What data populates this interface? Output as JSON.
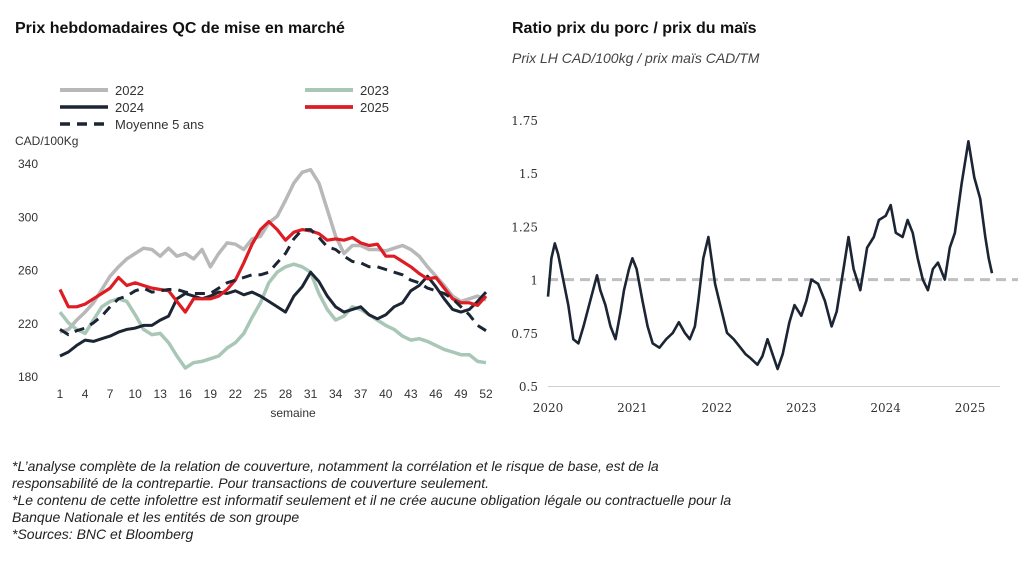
{
  "colors": {
    "y2022": "#b8b8b8",
    "y2023": "#a8c7b6",
    "y2024": "#1c2533",
    "y2025": "#dd1c24",
    "avg5": "#1c2533",
    "ratio": "#1c2533",
    "refline": "#bfbfbf"
  },
  "chart_data": [
    {
      "type": "line",
      "title": "Prix hebdomadaires QC de mise en marché",
      "ylabel": "CAD/100Kg",
      "xlabel": "semaine",
      "ylim": [
        180,
        340
      ],
      "yticks": [
        340,
        300,
        260,
        220,
        180
      ],
      "xticks": [
        1,
        4,
        7,
        10,
        13,
        16,
        19,
        22,
        25,
        28,
        31,
        34,
        37,
        40,
        43,
        46,
        49,
        52
      ],
      "xticks_labels": [
        "1",
        "4",
        "7",
        "10",
        "13",
        "16",
        "19",
        "22",
        "25",
        "28",
        "31",
        "34",
        "37",
        "40",
        "43",
        "46",
        "49",
        "52"
      ],
      "yticks_labels": [
        "340",
        "300",
        "260",
        "220",
        "180"
      ],
      "legend": [
        "2022",
        "2023",
        "2024",
        "2025",
        "Moyenne 5 ans"
      ],
      "series": [
        {
          "name": "2022",
          "x": [
            1,
            2,
            3,
            4,
            5,
            6,
            7,
            8,
            9,
            10,
            11,
            12,
            13,
            14,
            15,
            16,
            17,
            18,
            19,
            20,
            21,
            22,
            23,
            24,
            25,
            26,
            27,
            28,
            29,
            30,
            31,
            32,
            33,
            34,
            35,
            36,
            37,
            38,
            39,
            40,
            41,
            42,
            43,
            44,
            45,
            46,
            47,
            48,
            49,
            50,
            51,
            52
          ],
          "values": [
            213,
            215,
            222,
            228,
            235,
            245,
            255,
            262,
            268,
            272,
            276,
            275,
            270,
            276,
            270,
            272,
            268,
            275,
            262,
            272,
            280,
            279,
            275,
            283,
            285,
            295,
            300,
            312,
            325,
            333,
            335,
            325,
            305,
            285,
            272,
            278,
            278,
            275,
            275,
            274,
            276,
            278,
            275,
            270,
            262,
            255,
            248,
            240,
            236,
            238,
            240,
            237
          ]
        },
        {
          "name": "2023",
          "x": [
            1,
            2,
            3,
            4,
            5,
            6,
            7,
            8,
            9,
            10,
            11,
            12,
            13,
            14,
            15,
            16,
            17,
            18,
            19,
            20,
            21,
            22,
            23,
            24,
            25,
            26,
            27,
            28,
            29,
            30,
            31,
            32,
            33,
            34,
            35,
            36,
            37,
            38,
            39,
            40,
            41,
            42,
            43,
            44,
            45,
            46,
            47,
            48,
            49,
            50,
            51,
            52
          ],
          "values": [
            228,
            220,
            215,
            212,
            222,
            232,
            236,
            238,
            236,
            226,
            215,
            211,
            212,
            205,
            195,
            186,
            190,
            191,
            193,
            195,
            201,
            205,
            212,
            224,
            235,
            250,
            258,
            262,
            264,
            262,
            258,
            242,
            230,
            222,
            225,
            232,
            230,
            226,
            222,
            218,
            215,
            210,
            207,
            208,
            206,
            203,
            200,
            198,
            196,
            196,
            191,
            190
          ]
        },
        {
          "name": "2024",
          "x": [
            1,
            2,
            3,
            4,
            5,
            6,
            7,
            8,
            9,
            10,
            11,
            12,
            13,
            14,
            15,
            16,
            17,
            18,
            19,
            20,
            21,
            22,
            23,
            24,
            25,
            26,
            27,
            28,
            29,
            30,
            31,
            32,
            33,
            34,
            35,
            36,
            37,
            38,
            39,
            40,
            41,
            42,
            43,
            44,
            45,
            46,
            47,
            48,
            49,
            50,
            51,
            52
          ],
          "values": [
            195,
            198,
            203,
            207,
            206,
            208,
            210,
            213,
            215,
            216,
            218,
            218,
            222,
            225,
            238,
            242,
            240,
            238,
            240,
            243,
            242,
            244,
            241,
            243,
            240,
            236,
            232,
            228,
            240,
            247,
            258,
            251,
            240,
            232,
            228,
            230,
            232,
            226,
            223,
            226,
            232,
            235,
            244,
            248,
            255,
            247,
            238,
            230,
            228,
            230,
            236,
            243
          ]
        },
        {
          "name": "2025",
          "x": [
            1,
            2,
            3,
            4,
            5,
            6,
            7,
            8,
            9,
            10,
            11,
            12,
            13,
            14,
            15,
            16,
            17,
            18,
            19,
            20,
            21,
            22,
            23,
            24,
            25,
            26,
            27,
            28,
            29,
            30,
            31,
            32,
            33,
            34,
            35,
            36,
            37,
            38,
            39,
            40,
            41,
            42,
            43,
            44,
            45,
            46,
            47,
            48,
            49,
            50,
            51,
            52
          ],
          "values": [
            245,
            232,
            232,
            234,
            238,
            242,
            246,
            254,
            248,
            250,
            248,
            246,
            245,
            244,
            236,
            228,
            238,
            238,
            238,
            240,
            245,
            252,
            265,
            279,
            290,
            296,
            290,
            282,
            288,
            290,
            289,
            287,
            282,
            283,
            282,
            284,
            280,
            278,
            279,
            270,
            270,
            266,
            262,
            257,
            253,
            254,
            246,
            238,
            235,
            235,
            233,
            240
          ]
        },
        {
          "name": "Moyenne 5 ans",
          "x": [
            1,
            2,
            3,
            4,
            5,
            6,
            7,
            8,
            9,
            10,
            11,
            12,
            13,
            14,
            15,
            16,
            17,
            18,
            19,
            20,
            21,
            22,
            23,
            24,
            25,
            26,
            27,
            28,
            29,
            30,
            31,
            32,
            33,
            34,
            35,
            36,
            37,
            38,
            39,
            40,
            41,
            42,
            43,
            44,
            45,
            46,
            47,
            48,
            49,
            50,
            51,
            52
          ],
          "values": [
            215,
            211,
            214,
            216,
            220,
            225,
            232,
            238,
            240,
            244,
            246,
            243,
            244,
            245,
            245,
            243,
            242,
            242,
            242,
            246,
            250,
            252,
            254,
            256,
            256,
            258,
            265,
            272,
            283,
            290,
            290,
            284,
            277,
            275,
            270,
            266,
            265,
            262,
            262,
            260,
            258,
            256,
            252,
            250,
            246,
            244,
            242,
            238,
            232,
            226,
            218,
            214
          ]
        }
      ]
    },
    {
      "type": "line",
      "title": "Ratio prix du porc / prix du maïs",
      "subtitle": "Prix LH CAD/100kg / prix maïs CAD/TM",
      "ylim": [
        0.5,
        1.75
      ],
      "yticks": [
        1.75,
        1.5,
        1.25,
        1,
        0.75,
        0.5
      ],
      "yticks_labels": [
        "1.75",
        "1.5",
        "1.25",
        "1",
        "0.75",
        "0.5"
      ],
      "xticks": [
        2020,
        2021,
        2022,
        2023,
        2024,
        2025
      ],
      "xticks_labels": [
        "2020",
        "2021",
        "2022",
        "2023",
        "2024",
        "2025"
      ],
      "reference_line": 1.0,
      "series": [
        {
          "name": "",
          "x": [
            2020.0,
            2020.04,
            2020.08,
            2020.12,
            2020.18,
            2020.24,
            2020.3,
            2020.36,
            2020.42,
            2020.5,
            2020.58,
            2020.62,
            2020.68,
            2020.74,
            2020.8,
            2020.86,
            2020.9,
            2020.96,
            2021.0,
            2021.05,
            2021.12,
            2021.18,
            2021.24,
            2021.32,
            2021.4,
            2021.48,
            2021.55,
            2021.62,
            2021.68,
            2021.74,
            2021.78,
            2021.84,
            2021.9,
            2021.98,
            2022.04,
            2022.12,
            2022.2,
            2022.28,
            2022.34,
            2022.4,
            2022.48,
            2022.54,
            2022.6,
            2022.66,
            2022.72,
            2022.78,
            2022.86,
            2022.92,
            2023.0,
            2023.06,
            2023.12,
            2023.2,
            2023.28,
            2023.36,
            2023.42,
            2023.5,
            2023.56,
            2023.62,
            2023.7,
            2023.78,
            2023.86,
            2023.92,
            2024.0,
            2024.06,
            2024.12,
            2024.2,
            2024.26,
            2024.32,
            2024.38,
            2024.44,
            2024.5,
            2024.56,
            2024.62,
            2024.7,
            2024.76,
            2024.82,
            2024.9,
            2024.98,
            2025.05,
            2025.12,
            2025.18,
            2025.22,
            2025.26
          ],
          "values": [
            0.92,
            1.1,
            1.17,
            1.12,
            1.0,
            0.88,
            0.72,
            0.7,
            0.78,
            0.9,
            1.02,
            0.95,
            0.88,
            0.78,
            0.72,
            0.85,
            0.95,
            1.05,
            1.1,
            1.05,
            0.9,
            0.78,
            0.7,
            0.68,
            0.72,
            0.75,
            0.8,
            0.75,
            0.72,
            0.78,
            0.9,
            1.1,
            1.2,
            0.98,
            0.88,
            0.75,
            0.72,
            0.68,
            0.65,
            0.63,
            0.6,
            0.64,
            0.72,
            0.65,
            0.58,
            0.65,
            0.8,
            0.88,
            0.83,
            0.9,
            1.0,
            0.98,
            0.9,
            0.78,
            0.85,
            1.05,
            1.2,
            1.05,
            0.95,
            1.15,
            1.2,
            1.28,
            1.3,
            1.35,
            1.22,
            1.2,
            1.28,
            1.22,
            1.1,
            1.0,
            0.95,
            1.05,
            1.08,
            1.0,
            1.15,
            1.22,
            1.45,
            1.65,
            1.48,
            1.38,
            1.2,
            1.1,
            1.03
          ]
        }
      ]
    }
  ],
  "footnotes": [
    "*L’analyse complète de la relation de couverture, notamment la corrélation et le risque de base, est de la",
    "responsabilité de la contrepartie. Pour transactions de couverture seulement.",
    "*Le contenu de cette infolettre est informatif seulement et il ne crée aucune obligation légale ou contractuelle pour la",
    "Banque Nationale et les entités de son groupe",
    "*Sources: BNC et Bloomberg"
  ]
}
